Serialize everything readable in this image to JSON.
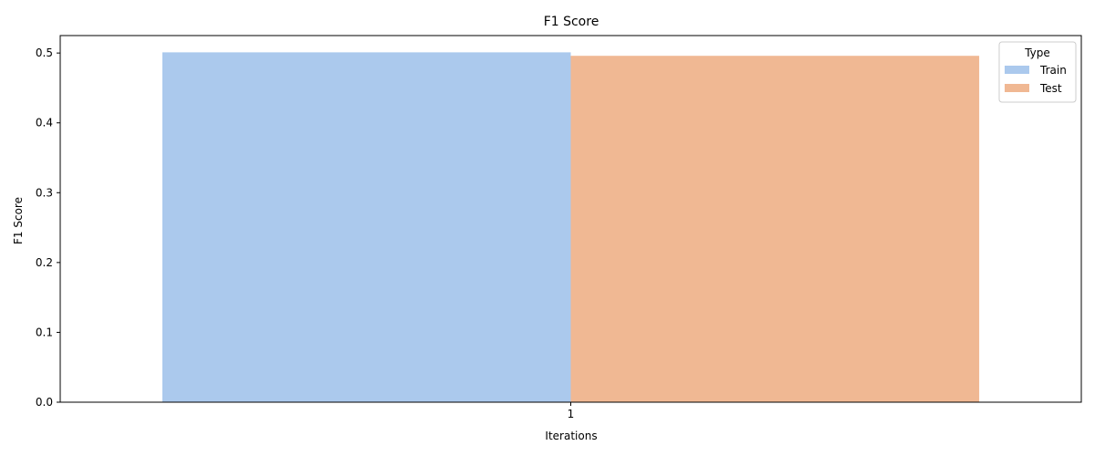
{
  "chart_data": {
    "type": "bar",
    "title": "F1 Score",
    "xlabel": "Iterations",
    "ylabel": "F1 Score",
    "categories": [
      "1"
    ],
    "series": [
      {
        "name": "Train",
        "values": [
          0.501
        ],
        "color": "#abc9ed"
      },
      {
        "name": "Test",
        "values": [
          0.496
        ],
        "color": "#f0b893"
      }
    ],
    "ylim": [
      0,
      0.525
    ],
    "yticks": [
      0.0,
      0.1,
      0.2,
      0.3,
      0.4,
      0.5
    ],
    "ytick_labels": [
      "0.0",
      "0.1",
      "0.2",
      "0.3",
      "0.4",
      "0.5"
    ],
    "grid": false,
    "legend": {
      "title": "Type",
      "placement": "top-right"
    }
  }
}
